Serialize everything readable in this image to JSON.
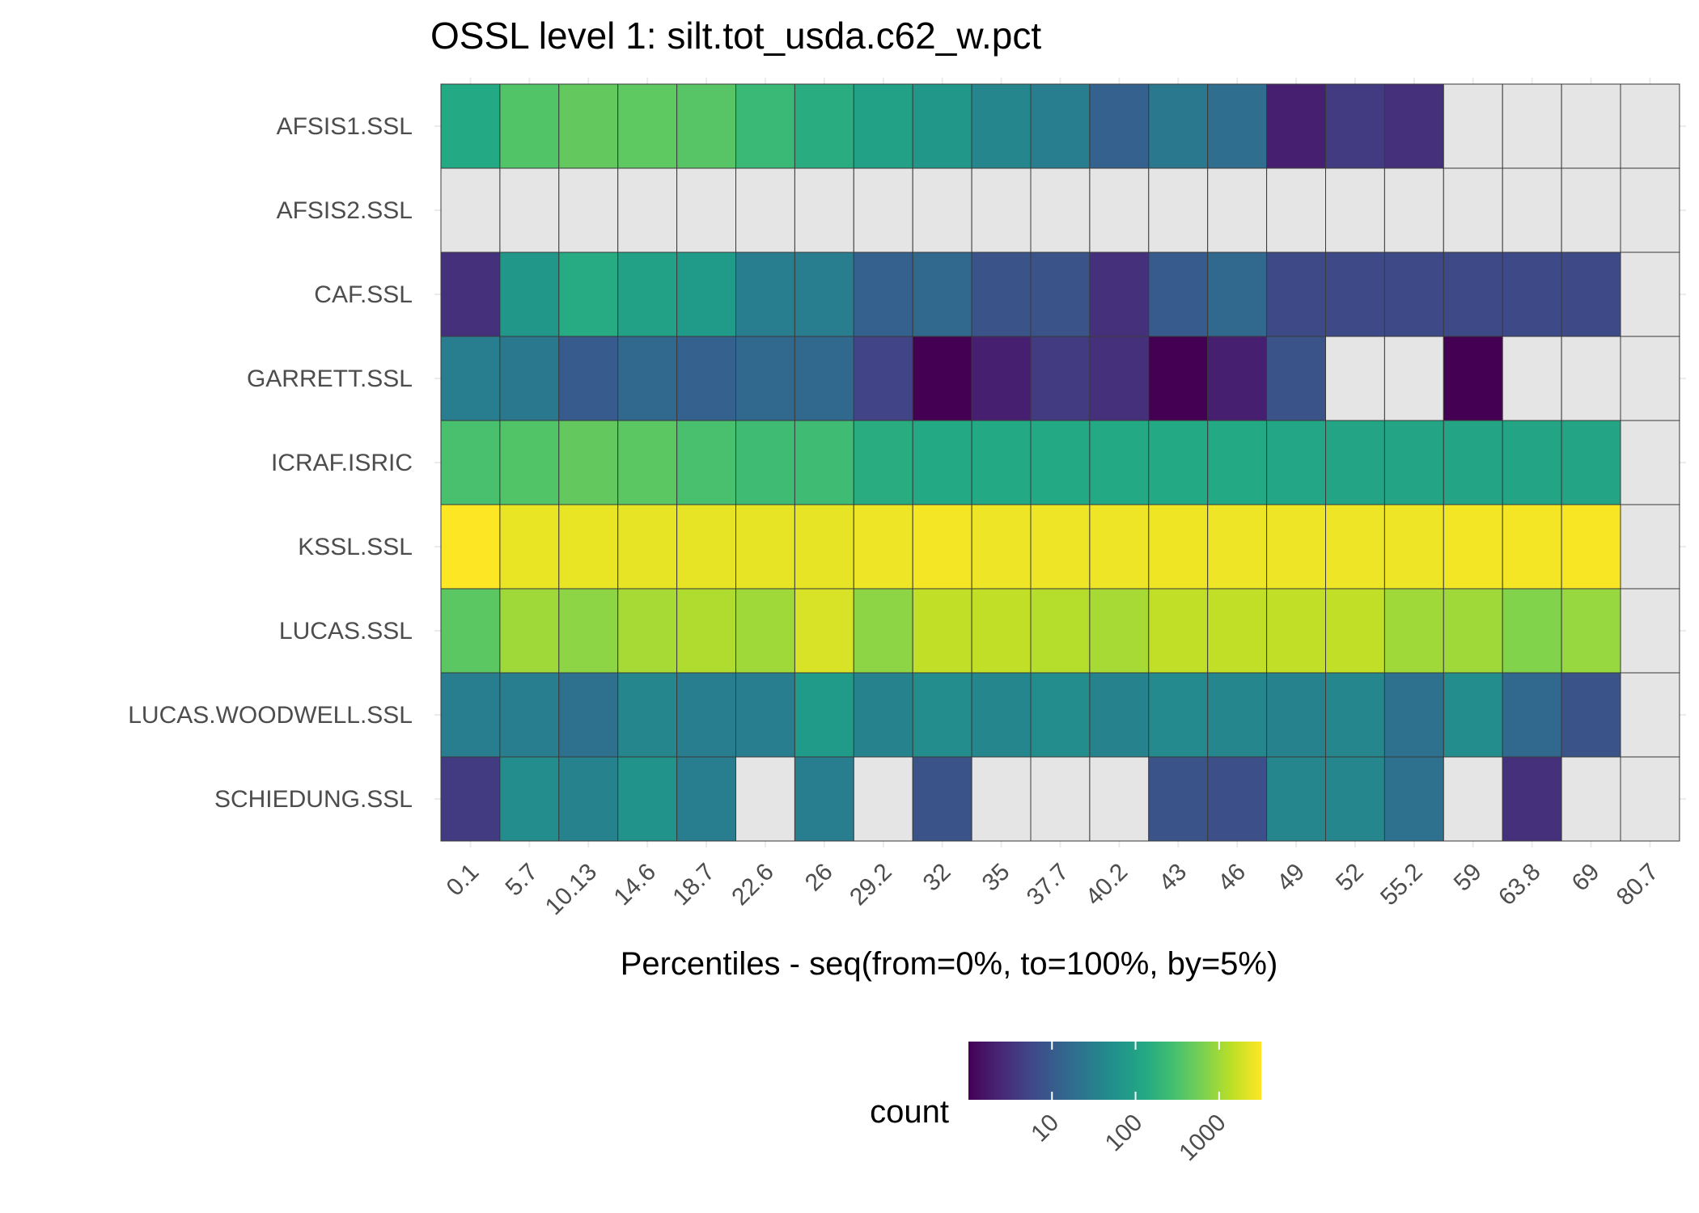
{
  "chart_data": {
    "type": "heatmap",
    "title": "OSSL level 1: silt.tot_usda.c62_w.pct",
    "xlabel": "Percentiles - seq(from=0%, to=100%, by=5%)",
    "ylabel": "",
    "x_categories": [
      "0.1",
      "5.7",
      "10.13",
      "14.6",
      "18.7",
      "22.6",
      "26",
      "29.2",
      "32",
      "35",
      "37.7",
      "40.2",
      "43",
      "46",
      "49",
      "52",
      "55.2",
      "59",
      "63.8",
      "69",
      "80.7"
    ],
    "y_categories": [
      "AFSIS1.SSL",
      "AFSIS2.SSL",
      "CAF.SSL",
      "GARRETT.SSL",
      "ICRAF.ISRIC",
      "KSSL.SSL",
      "LUCAS.SSL",
      "LUCAS.WOODWELL.SSL",
      "SCHIEDUNG.SSL"
    ],
    "values": [
      [
        130,
        350,
        450,
        420,
        380,
        220,
        150,
        100,
        70,
        40,
        30,
        12,
        25,
        18,
        2,
        4,
        3,
        null,
        null,
        null,
        null
      ],
      [
        null,
        null,
        null,
        null,
        null,
        null,
        null,
        null,
        null,
        null,
        null,
        null,
        null,
        null,
        null,
        null,
        null,
        null,
        null,
        null,
        null
      ],
      [
        3,
        70,
        140,
        100,
        80,
        30,
        30,
        12,
        15,
        8,
        8,
        3,
        10,
        15,
        6,
        6,
        6,
        6,
        6,
        6,
        null
      ],
      [
        30,
        25,
        10,
        15,
        12,
        15,
        15,
        5,
        1,
        2,
        4,
        3,
        1,
        2,
        8,
        null,
        null,
        1,
        null,
        null,
        null
      ],
      [
        300,
        350,
        450,
        400,
        300,
        250,
        250,
        150,
        130,
        130,
        130,
        130,
        130,
        130,
        120,
        110,
        110,
        110,
        110,
        110,
        null
      ],
      [
        3200,
        2500,
        2500,
        2400,
        2400,
        2400,
        2400,
        2600,
        2900,
        2600,
        2600,
        2600,
        2700,
        2600,
        2600,
        2600,
        2600,
        2800,
        2900,
        3000,
        null
      ],
      [
        400,
        1000,
        800,
        1100,
        1200,
        1000,
        2000,
        800,
        1500,
        1500,
        1300,
        1100,
        1500,
        1500,
        1500,
        1500,
        1000,
        1000,
        700,
        900,
        null
      ],
      [
        30,
        30,
        20,
        40,
        30,
        30,
        80,
        35,
        50,
        40,
        50,
        35,
        45,
        40,
        35,
        40,
        20,
        50,
        15,
        8,
        null
      ],
      [
        4,
        50,
        35,
        60,
        30,
        null,
        30,
        null,
        8,
        null,
        null,
        null,
        8,
        7,
        40,
        40,
        20,
        null,
        3,
        null,
        null
      ]
    ],
    "missing_color": "#e5e5e5",
    "scale": "log10",
    "color_scale": "viridis",
    "legend": {
      "title": "count",
      "ticks": [
        "10",
        "100",
        "1000"
      ],
      "tick_values": [
        10,
        100,
        1000
      ],
      "range": [
        1,
        3200
      ],
      "position": "bottom"
    }
  }
}
